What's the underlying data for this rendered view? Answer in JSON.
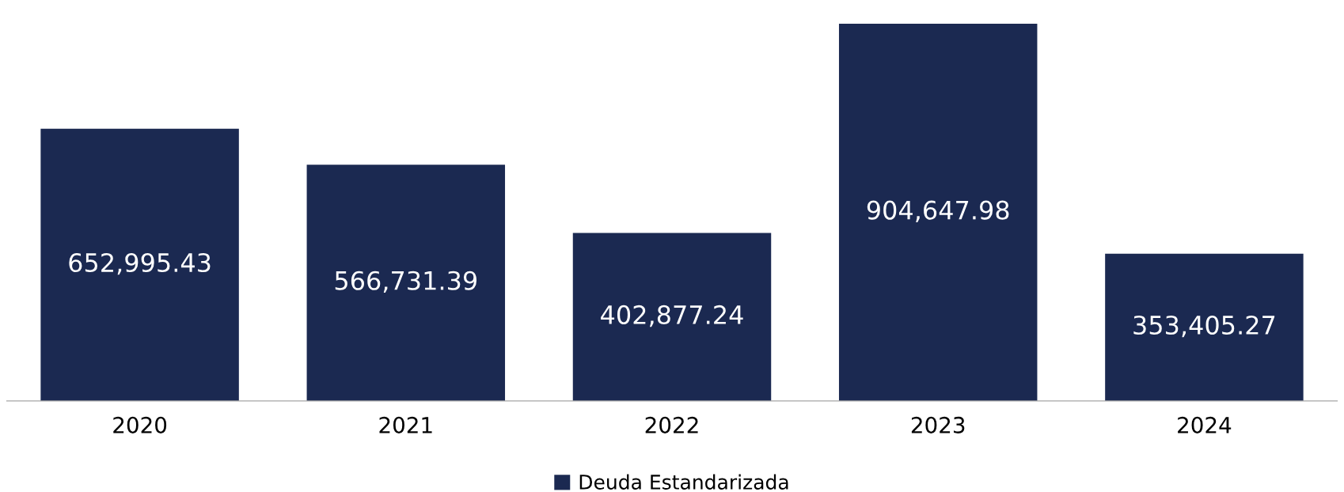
{
  "chart_data": {
    "type": "bar",
    "categories": [
      "2020",
      "2021",
      "2022",
      "2023",
      "2024"
    ],
    "series": [
      {
        "name": "Deuda Estandarizada",
        "color": "#1b2951",
        "values": [
          652995.43,
          566731.39,
          402877.24,
          904647.98,
          353405.27
        ],
        "value_labels": [
          "652,995.43",
          "566,731.39",
          "402,877.24",
          "904,647.98",
          "353,405.27"
        ]
      }
    ],
    "legend": "bottom",
    "grid": false,
    "tick_labels": "x"
  }
}
